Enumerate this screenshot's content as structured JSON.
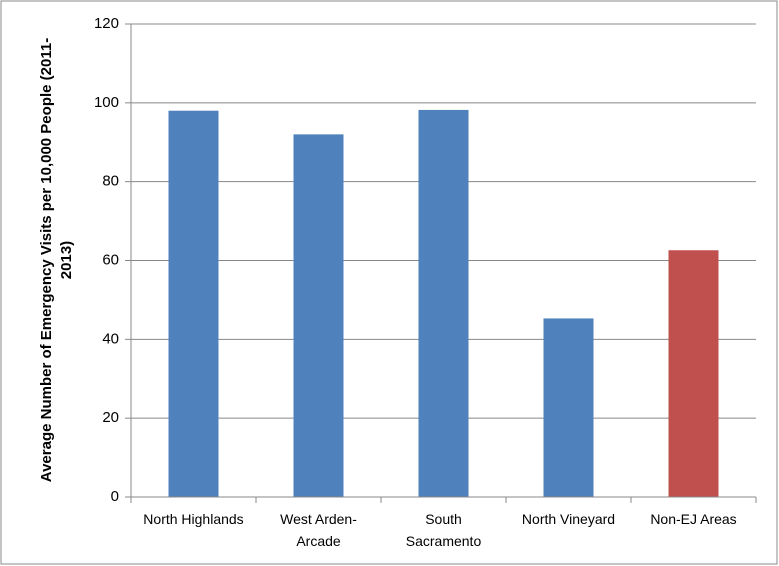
{
  "chart_data": {
    "type": "bar",
    "y_label": "Average Number of Emergency Visits per 10,000 People (2011-2013)",
    "categories": [
      "North Highlands",
      "West Arden-Arcade",
      "South Sacramento",
      "North Vineyard",
      "Non-EJ Areas"
    ],
    "values": [
      98,
      92,
      98.2,
      45.3,
      62.6
    ],
    "colors": [
      "#4f81bd",
      "#4f81bd",
      "#4f81bd",
      "#4f81bd",
      "#c0504d"
    ],
    "ylim": [
      0,
      120
    ],
    "yticks": [
      0,
      20,
      40,
      60,
      80,
      100,
      120
    ],
    "grid": true
  }
}
